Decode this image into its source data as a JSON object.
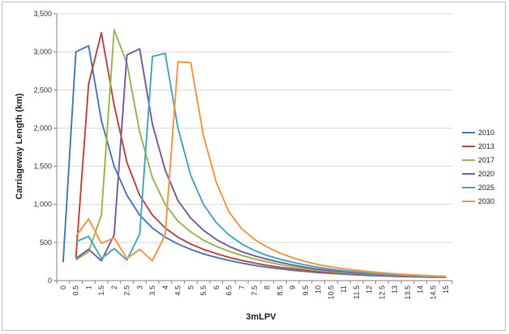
{
  "chart_data": {
    "type": "line",
    "title": "",
    "xlabel": "3mLPV",
    "ylabel": "Carriageway Length (km)",
    "ylim": [
      0,
      3500
    ],
    "yticks": [
      0,
      500,
      1000,
      1500,
      2000,
      2500,
      3000,
      3500
    ],
    "ytick_labels": [
      "0",
      "500",
      "1,000",
      "1,500",
      "2,000",
      "2,500",
      "3,000",
      "3,500"
    ],
    "categories": [
      "0",
      "0.5",
      "1",
      "1.5",
      "2",
      "2.5",
      "3",
      "3.5",
      "4",
      "4.5",
      "5",
      "5.5",
      "6",
      "6.5",
      "7",
      "7.5",
      "8",
      "8.5",
      "9",
      "9.5",
      "10",
      "10.5",
      "11",
      "11.5",
      "12",
      "12.5",
      "13",
      "13.5",
      "14",
      "14.5",
      "15"
    ],
    "grid": "horizontal",
    "legend": "right",
    "series": [
      {
        "name": "2010",
        "color": "#4a7ebb",
        "values": [
          240,
          3000,
          3080,
          2100,
          1500,
          1120,
          860,
          690,
          570,
          480,
          410,
          350,
          305,
          265,
          230,
          200,
          175,
          155,
          135,
          120,
          105,
          95,
          85,
          75,
          68,
          62,
          56,
          52,
          48,
          45,
          42
        ]
      },
      {
        "name": "2013",
        "color": "#be4b48",
        "values": [
          null,
          300,
          2580,
          3250,
          2300,
          1550,
          1120,
          860,
          690,
          570,
          480,
          410,
          355,
          305,
          265,
          230,
          200,
          175,
          155,
          135,
          120,
          105,
          95,
          85,
          76,
          68,
          62,
          56,
          52,
          48,
          45
        ]
      },
      {
        "name": "2017",
        "color": "#98b954",
        "values": [
          null,
          270,
          380,
          860,
          3290,
          2850,
          1950,
          1350,
          1000,
          780,
          640,
          530,
          450,
          385,
          330,
          285,
          245,
          210,
          180,
          155,
          135,
          120,
          105,
          95,
          85,
          76,
          68,
          62,
          56,
          52,
          48
        ]
      },
      {
        "name": "2020",
        "color": "#7d60a0",
        "values": [
          null,
          290,
          410,
          260,
          600,
          2960,
          3040,
          2050,
          1450,
          1050,
          820,
          660,
          540,
          450,
          380,
          325,
          280,
          240,
          205,
          175,
          150,
          130,
          115,
          100,
          90,
          80,
          72,
          65,
          58,
          53,
          50
        ]
      },
      {
        "name": "2025",
        "color": "#46aac5",
        "values": [
          null,
          510,
          580,
          290,
          420,
          270,
          610,
          2940,
          2980,
          2000,
          1380,
          1000,
          760,
          600,
          480,
          395,
          330,
          280,
          240,
          205,
          175,
          150,
          130,
          115,
          100,
          88,
          78,
          70,
          62,
          56,
          52
        ]
      },
      {
        "name": "2030",
        "color": "#f79646",
        "values": [
          null,
          580,
          810,
          490,
          560,
          290,
          410,
          260,
          600,
          2870,
          2860,
          1900,
          1290,
          900,
          680,
          540,
          440,
          360,
          300,
          250,
          210,
          180,
          155,
          135,
          118,
          103,
          90,
          80,
          70,
          62,
          56
        ]
      }
    ]
  }
}
